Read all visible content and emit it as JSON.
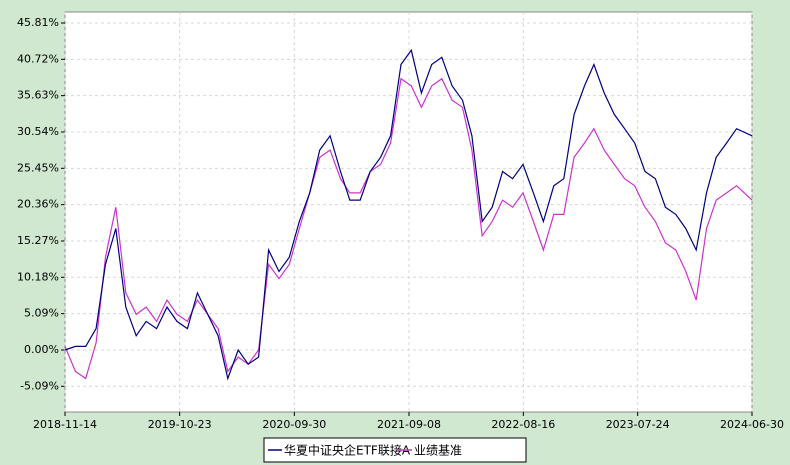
{
  "chart_data": {
    "type": "line",
    "x": [
      "2018-11-14",
      "2018-12-15",
      "2019-01-15",
      "2019-02-15",
      "2019-03-15",
      "2019-04-15",
      "2019-05-15",
      "2019-06-15",
      "2019-07-15",
      "2019-08-15",
      "2019-09-15",
      "2019-10-15",
      "2019-11-15",
      "2019-12-15",
      "2020-01-15",
      "2020-02-15",
      "2020-03-15",
      "2020-04-15",
      "2020-05-15",
      "2020-06-15",
      "2020-07-15",
      "2020-08-15",
      "2020-09-15",
      "2020-10-15",
      "2020-11-15",
      "2020-12-15",
      "2021-01-15",
      "2021-02-15",
      "2021-03-15",
      "2021-04-15",
      "2021-05-15",
      "2021-06-15",
      "2021-07-15",
      "2021-08-15",
      "2021-09-15",
      "2021-10-15",
      "2021-11-15",
      "2021-12-15",
      "2022-01-15",
      "2022-02-15",
      "2022-03-15",
      "2022-04-15",
      "2022-05-15",
      "2022-06-15",
      "2022-07-15",
      "2022-08-15",
      "2022-09-15",
      "2022-10-15",
      "2022-11-15",
      "2022-12-15",
      "2023-01-15",
      "2023-02-15",
      "2023-03-15",
      "2023-04-15",
      "2023-05-15",
      "2023-06-15",
      "2023-07-15",
      "2023-08-15",
      "2023-09-15",
      "2023-10-15",
      "2023-11-15",
      "2023-12-15",
      "2024-01-15",
      "2024-02-15",
      "2024-03-15",
      "2024-04-15",
      "2024-05-15",
      "2024-06-30"
    ],
    "series": [
      {
        "name": "华夏中证央企ETF联接A",
        "color": "#000080",
        "values": [
          0,
          0.5,
          0.5,
          3,
          12,
          17,
          6,
          2,
          4,
          3,
          6,
          4,
          3,
          8,
          5,
          2,
          -4,
          0,
          -2,
          -1,
          14,
          11,
          13,
          18,
          22,
          28,
          30,
          25,
          21,
          21,
          25,
          27,
          30,
          40,
          42,
          36,
          40,
          41,
          37,
          35,
          30,
          18,
          20,
          25,
          24,
          26,
          22,
          18,
          23,
          24,
          33,
          37,
          40,
          36,
          33,
          31,
          29,
          25,
          24,
          20,
          19,
          17,
          14,
          22,
          27,
          29,
          31,
          30
        ]
      },
      {
        "name": "业绩基准",
        "color": "#cc33cc",
        "values": [
          0.5,
          -3,
          -4,
          1,
          13,
          20,
          8,
          5,
          6,
          4,
          7,
          5,
          4,
          7,
          5,
          3,
          -3,
          -1,
          -2,
          0,
          12,
          10,
          12,
          17,
          22,
          27,
          28,
          24,
          22,
          22,
          25,
          26,
          29,
          38,
          37,
          34,
          37,
          38,
          35,
          34,
          28,
          16,
          18,
          21,
          20,
          22,
          18,
          14,
          19,
          19,
          27,
          29,
          31,
          28,
          26,
          24,
          23,
          20,
          18,
          15,
          14,
          11,
          7,
          17,
          21,
          22,
          23,
          21
        ]
      }
    ],
    "xlim": [
      "2018-11-14",
      "2024-06-30"
    ],
    "xticks": [
      "2018-11-14",
      "2019-10-23",
      "2020-09-30",
      "2021-09-08",
      "2022-08-16",
      "2023-07-24",
      "2024-06-30"
    ],
    "ylim": [
      -8.69,
      47.35
    ],
    "yticks": [
      {
        "value": -5.09,
        "label": "-5.09%"
      },
      {
        "value": 0,
        "label": "0.00%"
      },
      {
        "value": 5.09,
        "label": "5.09%"
      },
      {
        "value": 10.18,
        "label": "10.18%"
      },
      {
        "value": 15.27,
        "label": "15.27%"
      },
      {
        "value": 20.36,
        "label": "20.36%"
      },
      {
        "value": 25.45,
        "label": "25.45%"
      },
      {
        "value": 30.54,
        "label": "30.54%"
      },
      {
        "value": 35.63,
        "label": "35.63%"
      },
      {
        "value": 40.72,
        "label": "40.72%"
      },
      {
        "value": 45.81,
        "label": "45.81%"
      }
    ],
    "grid": true
  }
}
